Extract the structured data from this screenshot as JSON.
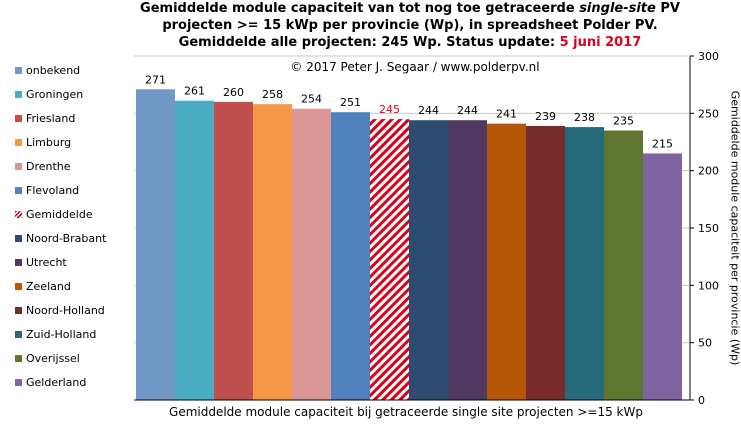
{
  "title": {
    "line1_a": "Gemiddelde module capaciteit van tot nog toe getraceerde ",
    "line1_italic": "single-site",
    "line1_b": " PV",
    "line2": "projecten >= 15 kWp per provincie (Wp), in spreadsheet Polder PV.",
    "line3_a": "Gemiddelde alle projecten: 245 Wp. Status update: ",
    "line3_date": "5 juni 2017"
  },
  "copyright": "© 2017 Peter J. Segaar / www.polderpv.nl",
  "colors": {
    "grid": "#c8c8c8",
    "axis": "#000000",
    "highlight_label": "#e0001a",
    "hatch": "#d9001b"
  },
  "chart_data": {
    "type": "bar",
    "title": "Gemiddelde module capaciteit van tot nog toe getraceerde single-site PV projecten >= 15 kWp per provincie (Wp), in spreadsheet Polder PV. Gemiddelde alle projecten: 245 Wp. Status update: 5 juni 2017",
    "xlabel": "Gemiddelde module capaciteit bij getraceerde single site projecten >=15 kWp",
    "ylabel": "Gemiddelde module capaciteit per provincie (Wp)",
    "ylim": [
      0,
      300
    ],
    "yticks": [
      0,
      50,
      100,
      150,
      200,
      250,
      300
    ],
    "y_axis_side": "right",
    "grid": true,
    "legend_placement": "left",
    "categories": [
      "onbekend",
      "Groningen",
      "Friesland",
      "Limburg",
      "Drenthe",
      "Flevoland",
      "Gemiddelde",
      "Noord-Brabant",
      "Utrecht",
      "Zeeland",
      "Noord-Holland",
      "Zuid-Holland",
      "Overijssel",
      "Gelderland"
    ],
    "values": [
      271,
      261,
      260,
      258,
      254,
      251,
      245,
      244,
      244,
      241,
      239,
      238,
      235,
      215
    ],
    "bar_colors": [
      "#7199c8",
      "#4bacc6",
      "#c0504d",
      "#f79646",
      "#d99694",
      "#4f81bd",
      "hatch",
      "#2e4b72",
      "#4f3b62",
      "#b65708",
      "#772c2a",
      "#276a7c",
      "#5f7530",
      "#8064a2"
    ],
    "highlighted_category": "Gemiddelde"
  }
}
